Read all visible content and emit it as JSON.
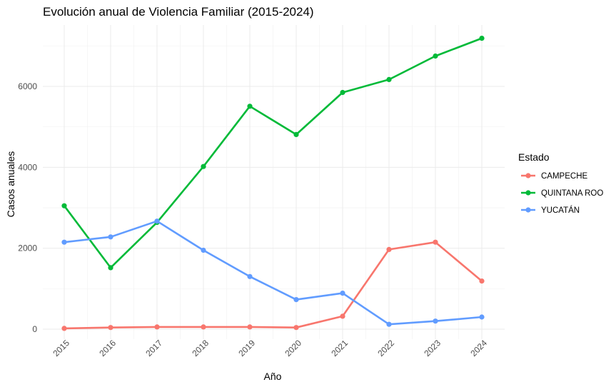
{
  "chart_data": {
    "type": "line",
    "title": "Evolución anual de Violencia Familiar (2015-2024)",
    "xlabel": "Año",
    "ylabel": "Casos anuales",
    "categories": [
      "2015",
      "2016",
      "2017",
      "2018",
      "2019",
      "2020",
      "2021",
      "2022",
      "2023",
      "2024"
    ],
    "ylim": [
      -150,
      7400
    ],
    "yticks": [
      0,
      2000,
      4000,
      6000
    ],
    "grid": true,
    "legend": {
      "title": "Estado",
      "position": "right"
    },
    "series": [
      {
        "name": "CAMPECHE",
        "color": "#F8766D",
        "values": [
          20,
          40,
          55,
          55,
          55,
          40,
          320,
          1970,
          2150,
          1190
        ]
      },
      {
        "name": "QUINTANA ROO",
        "color": "#00BA38",
        "values": [
          3050,
          1520,
          2640,
          4020,
          5510,
          4810,
          5850,
          6170,
          6750,
          7190
        ]
      },
      {
        "name": "YUCATÁN",
        "color": "#619CFF",
        "values": [
          2150,
          2280,
          2670,
          1950,
          1300,
          730,
          890,
          120,
          200,
          300
        ]
      }
    ]
  }
}
